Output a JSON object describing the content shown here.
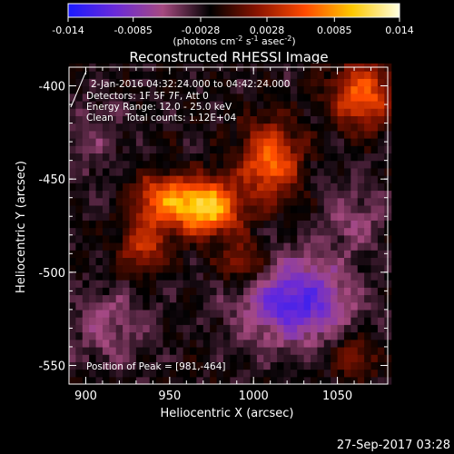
{
  "chart_data": {
    "type": "heatmap",
    "title": "Reconstructed RHESSI Image",
    "xlabel": "Heliocentric X (arcsec)",
    "ylabel": "Heliocentric Y (arcsec)",
    "xlim": [
      890,
      1080
    ],
    "ylim": [
      -560,
      -390
    ],
    "x_ticks": [
      900,
      950,
      1000,
      1050
    ],
    "y_ticks": [
      -400,
      -450,
      -500,
      -550
    ],
    "colorbar": {
      "range": [
        -0.014,
        0.014
      ],
      "ticks": [
        "-0.014",
        "-0.0085",
        "-0.0028",
        "0.0028",
        "0.0085",
        "0.014"
      ],
      "unit_label": [
        "(photons cm",
        "-2",
        " s",
        "-1",
        " asec",
        "-2",
        ")"
      ],
      "colors": [
        "#1a1aff",
        "#6a2ad8",
        "#a64a80",
        "#000000",
        "#8a1400",
        "#ff4a00",
        "#ffc800",
        "#ffffe0"
      ]
    },
    "annotations": [
      "2-Jan-2016 04:32:24.000 to 04:42:24.000",
      "Detectors: 1F 5F 7F, Att 0",
      "Energy Range: 12.0 - 25.0 keV",
      "Clean    Total counts: 1.12E+04"
    ],
    "peak_label": "Position of Peak = [981,-464]",
    "peak": [
      981,
      -464
    ],
    "sources": [
      {
        "x": 972,
        "y": -465,
        "amp": 0.013,
        "sx": 14,
        "sy": 10
      },
      {
        "x": 945,
        "y": -460,
        "amp": 0.008,
        "sx": 12,
        "sy": 9
      },
      {
        "x": 1010,
        "y": -440,
        "amp": 0.009,
        "sx": 12,
        "sy": 14
      },
      {
        "x": 1065,
        "y": -405,
        "amp": 0.0085,
        "sx": 13,
        "sy": 12
      },
      {
        "x": 935,
        "y": -485,
        "amp": 0.006,
        "sx": 10,
        "sy": 10
      },
      {
        "x": 995,
        "y": -495,
        "amp": 0.0055,
        "sx": 10,
        "sy": 8
      },
      {
        "x": 1060,
        "y": -545,
        "amp": 0.004,
        "sx": 10,
        "sy": 8
      },
      {
        "x": 905,
        "y": -430,
        "amp": -0.002,
        "sx": 12,
        "sy": 20
      },
      {
        "x": 1025,
        "y": -515,
        "amp": -0.009,
        "sx": 22,
        "sy": 16
      },
      {
        "x": 1060,
        "y": -470,
        "amp": -0.003,
        "sx": 14,
        "sy": 14
      },
      {
        "x": 915,
        "y": -530,
        "amp": -0.0035,
        "sx": 16,
        "sy": 14
      }
    ]
  },
  "footer": {
    "timestamp": "27-Sep-2017 03:28"
  }
}
